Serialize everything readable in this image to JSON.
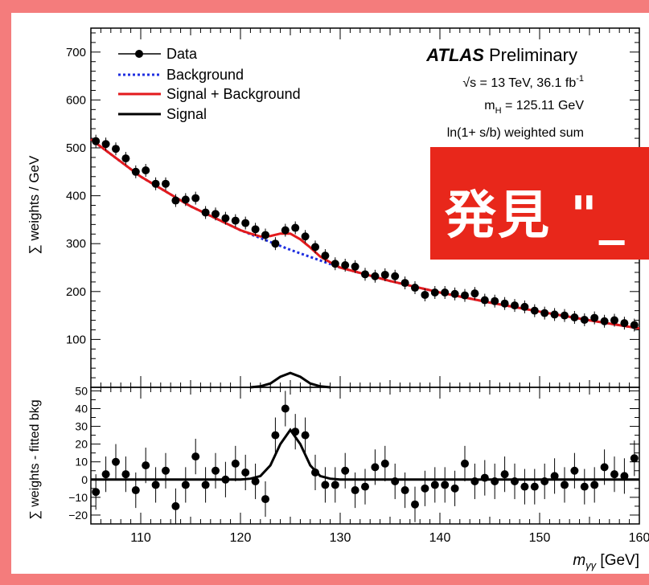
{
  "chart_data": [
    {
      "type": "scatter",
      "panel": "main",
      "title": "",
      "ylabel": "∑ weights / GeV",
      "xlabel": "",
      "xlim": [
        105,
        160
      ],
      "ylim": [
        0,
        750
      ],
      "yticks": [
        100,
        200,
        300,
        400,
        500,
        600,
        700
      ],
      "legend_placement": "top-left",
      "legend": [
        "Data",
        "Background",
        "Signal + Background",
        "Signal"
      ],
      "annotations": {
        "experiment": "ATLAS",
        "experiment_suffix": "Preliminary",
        "energy_pre": "√s = 13 TeV, 36.1 fb",
        "energy_sup": "-1",
        "mass_pre": "m",
        "mass_sub": "H",
        "mass_post": " = 125.11 GeV",
        "method": "ln(1+ s/b) weighted sum"
      },
      "series": [
        {
          "name": "Data",
          "x": [
            105.5,
            106.5,
            107.5,
            108.5,
            109.5,
            110.5,
            111.5,
            112.5,
            113.5,
            114.5,
            115.5,
            116.5,
            117.5,
            118.5,
            119.5,
            120.5,
            121.5,
            122.5,
            123.5,
            124.5,
            125.5,
            126.5,
            127.5,
            128.5,
            129.5,
            130.5,
            131.5,
            132.5,
            133.5,
            134.5,
            135.5,
            136.5,
            137.5,
            138.5,
            139.5,
            140.5,
            141.5,
            142.5,
            143.5,
            144.5,
            145.5,
            146.5,
            147.5,
            148.5,
            149.5,
            150.5,
            151.5,
            152.5,
            153.5,
            154.5,
            155.5,
            156.5,
            157.5,
            158.5,
            159.5
          ],
          "y": [
            514,
            508,
            498,
            478,
            450,
            453,
            425,
            425,
            390,
            392,
            395,
            365,
            362,
            353,
            348,
            343,
            330,
            318,
            300,
            328,
            333,
            315,
            293,
            275,
            258,
            255,
            252,
            236,
            232,
            235,
            232,
            218,
            208,
            193,
            198,
            198,
            195,
            192,
            196,
            182,
            180,
            175,
            171,
            168,
            160,
            155,
            152,
            150,
            146,
            141,
            145,
            138,
            140,
            134,
            130
          ]
        },
        {
          "name": "Background",
          "x": [
            105,
            110,
            115,
            120,
            125,
            130,
            135,
            140,
            145,
            150,
            155,
            160
          ],
          "y": [
            518,
            440,
            378,
            328,
            287,
            250,
            222,
            198,
            177,
            158,
            140,
            123
          ]
        },
        {
          "name": "Signal + Background",
          "x": [
            105,
            110,
            115,
            120,
            121,
            122,
            123,
            124,
            125,
            126,
            127,
            128,
            129,
            130,
            135,
            140,
            145,
            150,
            155,
            160
          ],
          "y": [
            518,
            440,
            378,
            328,
            321,
            315,
            316,
            321,
            321,
            309,
            292,
            273,
            261,
            250,
            222,
            198,
            177,
            158,
            140,
            123
          ]
        },
        {
          "name": "Signal",
          "x": [
            121,
            122,
            123,
            124,
            125,
            126,
            127,
            128,
            129
          ],
          "y": [
            0,
            2,
            8,
            22,
            30,
            22,
            8,
            2,
            0
          ]
        }
      ]
    },
    {
      "type": "scatter",
      "panel": "residual",
      "title": "",
      "ylabel": "∑ weights - fitted bkg",
      "xlabel_pre": "m",
      "xlabel_sub": "γγ",
      "xlabel_post": " [GeV]",
      "xlim": [
        105,
        160
      ],
      "ylim": [
        -25,
        52
      ],
      "yticks": [
        -20,
        -10,
        0,
        10,
        20,
        30,
        40,
        50
      ],
      "xticks": [
        110,
        120,
        130,
        140,
        150,
        160
      ],
      "series": [
        {
          "name": "Data",
          "x": [
            105.5,
            106.5,
            107.5,
            108.5,
            109.5,
            110.5,
            111.5,
            112.5,
            113.5,
            114.5,
            115.5,
            116.5,
            117.5,
            118.5,
            119.5,
            120.5,
            121.5,
            122.5,
            123.5,
            124.5,
            125.5,
            126.5,
            127.5,
            128.5,
            129.5,
            130.5,
            131.5,
            132.5,
            133.5,
            134.5,
            135.5,
            136.5,
            137.5,
            138.5,
            139.5,
            140.5,
            141.5,
            142.5,
            143.5,
            144.5,
            145.5,
            146.5,
            147.5,
            148.5,
            149.5,
            150.5,
            151.5,
            152.5,
            153.5,
            154.5,
            155.5,
            156.5,
            157.5,
            158.5,
            159.5
          ],
          "y": [
            -7,
            3,
            10,
            3,
            -6,
            8,
            -3,
            5,
            -15,
            -3,
            13,
            -3,
            5,
            0,
            9,
            4,
            -1,
            -11,
            25,
            40,
            27,
            25,
            4,
            -3,
            -3,
            5,
            -6,
            -4,
            7,
            9,
            -1,
            -6,
            -14,
            -5,
            -3,
            -3,
            -5,
            9,
            -1,
            1,
            -1,
            3,
            -1,
            -4,
            -4,
            -1,
            2,
            -3,
            5,
            -4,
            -3,
            7,
            3,
            2,
            12
          ],
          "err": [
            10,
            10,
            10,
            10,
            10,
            10,
            10,
            10,
            10,
            10,
            10,
            10,
            10,
            10,
            10,
            10,
            10,
            10,
            10,
            10,
            10,
            10,
            10,
            10,
            10,
            10,
            10,
            10,
            10,
            10,
            10,
            10,
            10,
            10,
            10,
            10,
            10,
            10,
            10,
            10,
            10,
            10,
            10,
            10,
            10,
            10,
            10,
            10,
            10,
            10,
            10,
            10,
            10,
            10,
            10
          ]
        },
        {
          "name": "Signal",
          "x": [
            105,
            120,
            121,
            122,
            123,
            124,
            125,
            126,
            127,
            128,
            129,
            130,
            160
          ],
          "y": [
            0,
            0,
            0.5,
            2,
            8,
            20,
            28,
            20,
            8,
            2,
            0.5,
            0,
            0
          ]
        }
      ]
    }
  ],
  "banner": {
    "text": "発見 \"_",
    "color": "#e8271b"
  },
  "colors": {
    "frame": "#f47c7c",
    "data": "#000000",
    "background": "#1f2fe0",
    "sig_bkg": "#e31a1c",
    "signal": "#000000"
  }
}
